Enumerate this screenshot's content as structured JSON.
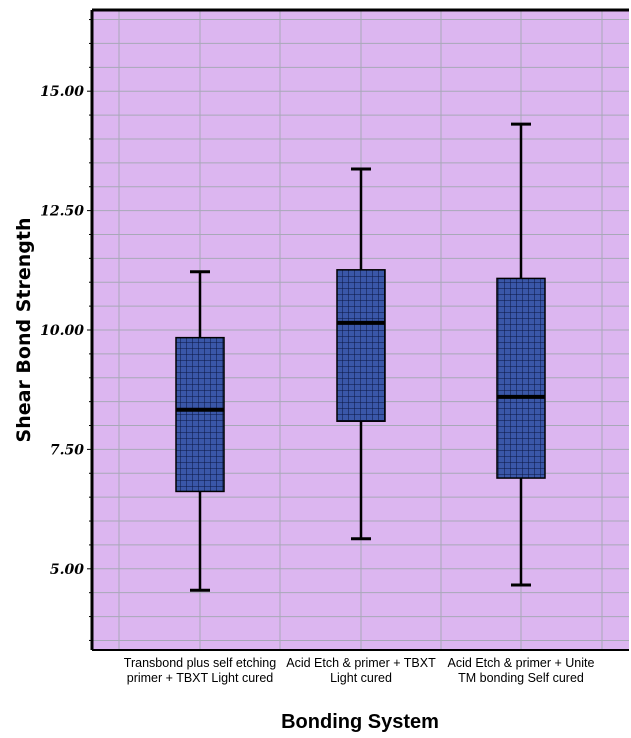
{
  "chart_data": {
    "type": "boxplot",
    "xlabel": "Bonding System",
    "ylabel": "Shear Bond Strength",
    "ylim": [
      3.3,
      16.7
    ],
    "y_ticks": [
      5.0,
      7.5,
      10.0,
      12.5,
      15.0
    ],
    "y_tick_labels": [
      "5.00",
      "7.50",
      "10.00",
      "12.50",
      "15.00"
    ],
    "grid": true,
    "categories": [
      [
        "Transbond plus self etching",
        "primer + TBXT Light cured"
      ],
      [
        "Acid Etch & primer + TBXT",
        "Light cured"
      ],
      [
        "Acid Etch & primer + Unite",
        "TM bonding Self cured"
      ]
    ],
    "boxes": [
      {
        "min": 4.55,
        "q1": 6.62,
        "median": 8.33,
        "q3": 9.84,
        "max": 11.22
      },
      {
        "min": 5.63,
        "q1": 8.09,
        "median": 10.15,
        "q3": 11.26,
        "max": 13.37
      },
      {
        "min": 4.66,
        "q1": 6.9,
        "median": 8.6,
        "q3": 11.08,
        "max": 14.31
      }
    ],
    "colors": {
      "plot_background": "#dcb6f0",
      "box_fill": "#3a57a8",
      "box_grid": "#0a1640",
      "grid_line": "#a8a8b8",
      "axis": "#000000"
    }
  }
}
